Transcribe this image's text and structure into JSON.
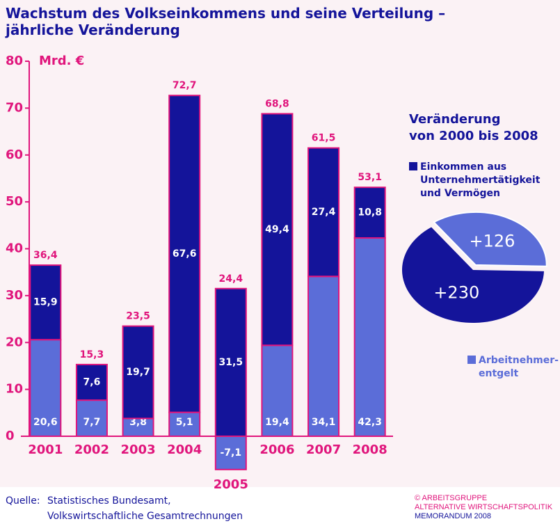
{
  "chart_data": {
    "type": "bar",
    "title": "Wachstum des Volkseinkommens und seine Verteilung –\njährliche Veränderung",
    "y_unit": "Mrd. €",
    "categories": [
      "2001",
      "2002",
      "2003",
      "2004",
      "2005",
      "2006",
      "2007",
      "2008"
    ],
    "stacked": true,
    "series": [
      {
        "name": "Arbeitnehmer-\nentgelt",
        "color": "#5b6dd8",
        "values": [
          20.6,
          7.7,
          3.8,
          5.1,
          -7.1,
          19.4,
          34.1,
          42.3
        ],
        "value_labels": [
          "20,6",
          "7,7",
          "3,8",
          "5,1",
          "-7,1",
          "19,4",
          "34,1",
          "42,3"
        ]
      },
      {
        "name": "Einkommen aus\nUnternehmertätigkeit\nund Vermögen",
        "color": "#14149a",
        "values": [
          15.9,
          7.6,
          19.7,
          67.6,
          31.5,
          49.4,
          27.4,
          10.8
        ],
        "value_labels": [
          "15,9",
          "7,6",
          "19,7",
          "67,6",
          "31,5",
          "49,4",
          "27,4",
          "10,8"
        ]
      }
    ],
    "totals": [
      36.4,
      15.3,
      23.5,
      72.7,
      24.4,
      68.8,
      61.5,
      53.1
    ],
    "total_labels": [
      "36,4",
      "15,3",
      "23,5",
      "72,7",
      "24,4",
      "68,8",
      "61,5",
      "53,1"
    ],
    "ylim": [
      -10,
      80
    ],
    "yticks": [
      0,
      10,
      20,
      30,
      40,
      50,
      60,
      70,
      80
    ],
    "inset": {
      "type": "pie",
      "title": "Veränderung\nvon 2000 bis 2008",
      "values": [
        230,
        126
      ],
      "value_labels": [
        "+230",
        "+126"
      ]
    },
    "source": [
      "Quelle:",
      "Statistisches Bundesamt,",
      "Volkswirtschaftliche Gesamtrechnungen"
    ],
    "credit": [
      "© ARBEITSGRUPPE",
      "ALTERNATIVE WIRTSCHAFTSPOLITIK",
      "MEMORANDUM 2008"
    ]
  }
}
